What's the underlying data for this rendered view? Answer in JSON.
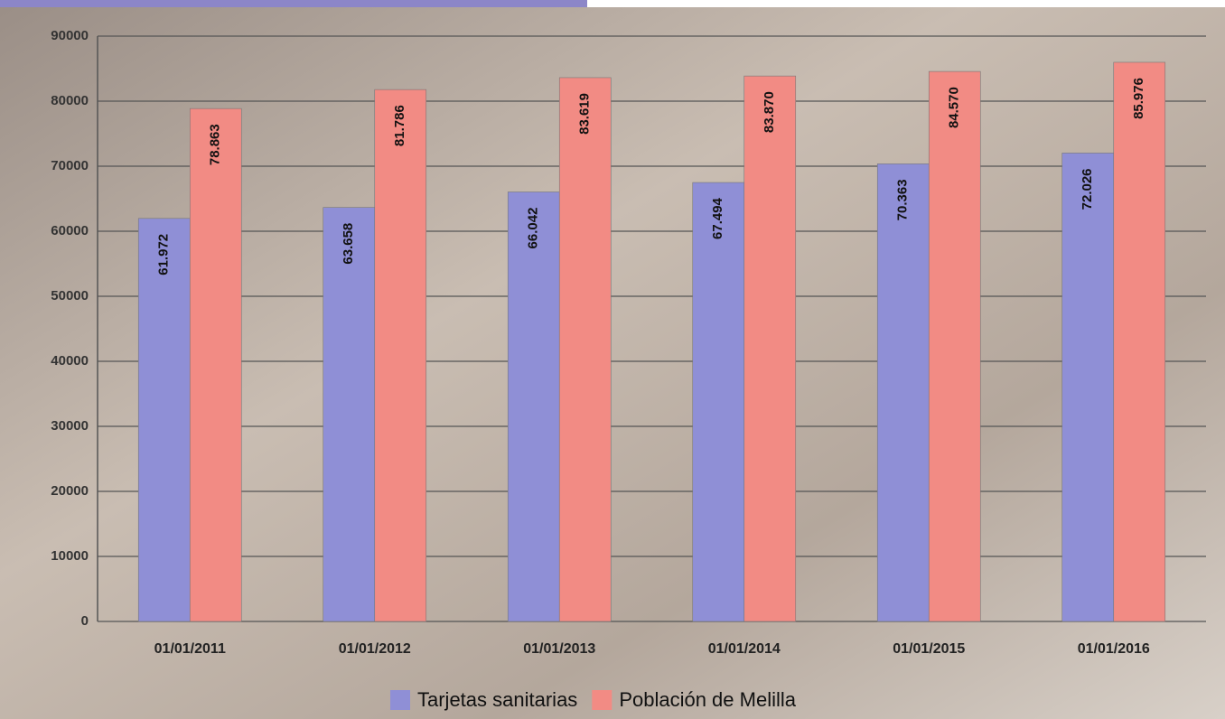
{
  "chart_data": {
    "type": "bar",
    "categories": [
      "01/01/2011",
      "01/01/2012",
      "01/01/2013",
      "01/01/2014",
      "01/01/2015",
      "01/01/2016"
    ],
    "series": [
      {
        "name": "Tarjetas sanitarias",
        "color": "#8f8fd6",
        "values": [
          61972,
          63658,
          66042,
          67494,
          70363,
          72026
        ],
        "value_labels": [
          "61.972",
          "63.658",
          "66.042",
          "67.494",
          "70.363",
          "72.026"
        ]
      },
      {
        "name": "Población de Melilla",
        "color": "#f28b84",
        "values": [
          78863,
          81786,
          83619,
          83870,
          84570,
          85976
        ],
        "value_labels": [
          "78.863",
          "81.786",
          "83.619",
          "83.870",
          "84.570",
          "85.976"
        ]
      }
    ],
    "ylim": [
      0,
      90000
    ],
    "yticks": [
      0,
      10000,
      20000,
      30000,
      40000,
      50000,
      60000,
      70000,
      80000,
      90000
    ],
    "grid": true
  }
}
